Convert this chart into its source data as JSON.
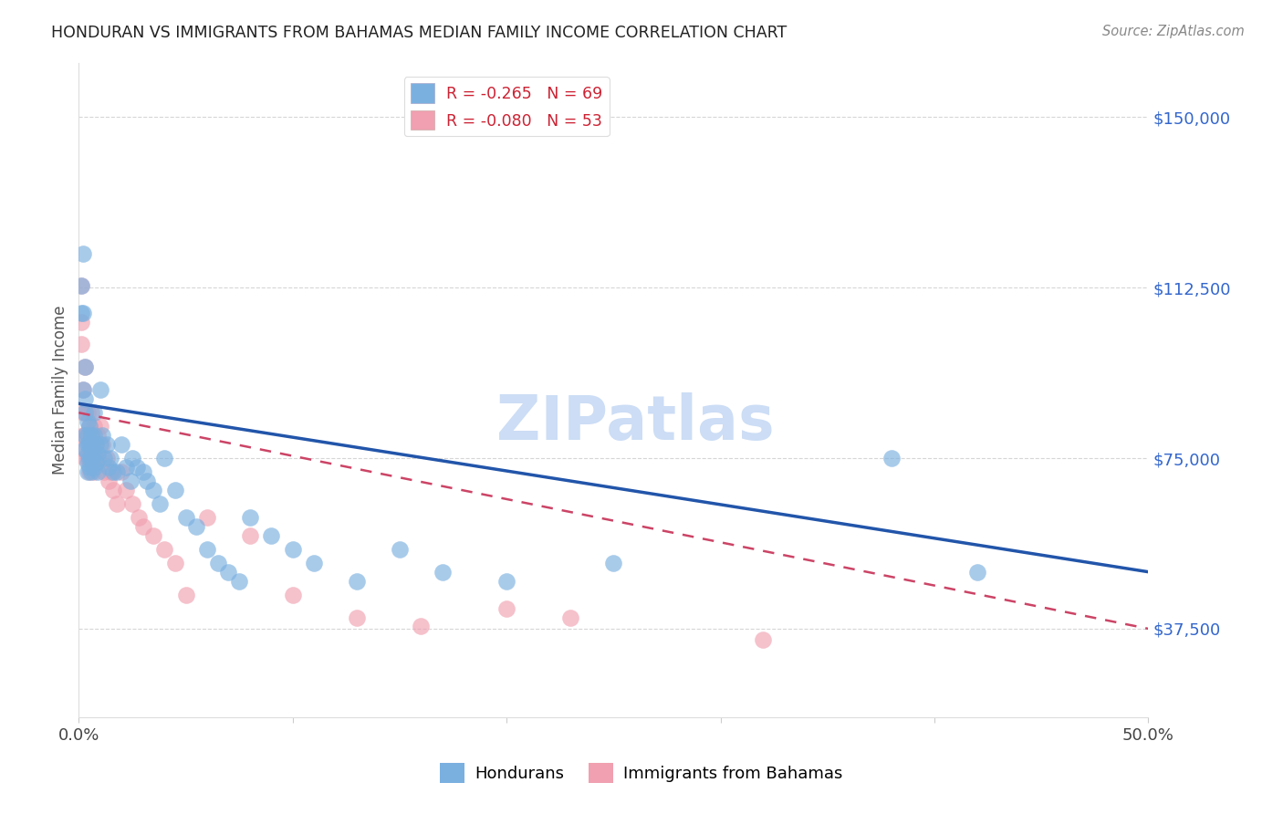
{
  "title": "HONDURAN VS IMMIGRANTS FROM BAHAMAS MEDIAN FAMILY INCOME CORRELATION CHART",
  "source": "Source: ZipAtlas.com",
  "ylabel": "Median Family Income",
  "yticks": [
    37500,
    75000,
    112500,
    150000
  ],
  "ytick_labels": [
    "$37,500",
    "$75,000",
    "$112,500",
    "$150,000"
  ],
  "xlim": [
    0.0,
    0.5
  ],
  "ylim": [
    18000,
    162000
  ],
  "legend1_label": "R = -0.265   N = 69",
  "legend2_label": "R = -0.080   N = 53",
  "color_blue": "#7ab0e0",
  "color_pink": "#f0a0b0",
  "color_blue_line": "#2255aa",
  "color_pink_line": "#cc4466",
  "watermark": "ZIPatlas",
  "watermark_color": "#ccddf5",
  "hondurans_x": [
    0.001,
    0.001,
    0.002,
    0.002,
    0.002,
    0.003,
    0.003,
    0.003,
    0.003,
    0.003,
    0.004,
    0.004,
    0.004,
    0.004,
    0.004,
    0.004,
    0.005,
    0.005,
    0.005,
    0.005,
    0.006,
    0.006,
    0.006,
    0.006,
    0.007,
    0.007,
    0.007,
    0.007,
    0.008,
    0.008,
    0.009,
    0.009,
    0.01,
    0.01,
    0.011,
    0.012,
    0.013,
    0.014,
    0.015,
    0.016,
    0.018,
    0.02,
    0.022,
    0.024,
    0.025,
    0.027,
    0.03,
    0.032,
    0.035,
    0.038,
    0.04,
    0.045,
    0.05,
    0.055,
    0.06,
    0.065,
    0.07,
    0.075,
    0.08,
    0.09,
    0.1,
    0.11,
    0.13,
    0.15,
    0.17,
    0.2,
    0.25,
    0.38,
    0.42
  ],
  "hondurans_y": [
    113000,
    107000,
    120000,
    107000,
    90000,
    95000,
    88000,
    85000,
    80000,
    77000,
    83000,
    80000,
    78000,
    76000,
    74000,
    72000,
    82000,
    78000,
    75000,
    73000,
    80000,
    78000,
    75000,
    72000,
    85000,
    80000,
    76000,
    73000,
    78000,
    74000,
    76000,
    72000,
    90000,
    78000,
    80000,
    75000,
    78000,
    73000,
    75000,
    72000,
    72000,
    78000,
    73000,
    70000,
    75000,
    73000,
    72000,
    70000,
    68000,
    65000,
    75000,
    68000,
    62000,
    60000,
    55000,
    52000,
    50000,
    48000,
    62000,
    58000,
    55000,
    52000,
    48000,
    55000,
    50000,
    48000,
    52000,
    75000,
    50000
  ],
  "bahamas_x": [
    0.001,
    0.001,
    0.001,
    0.002,
    0.002,
    0.002,
    0.002,
    0.003,
    0.003,
    0.003,
    0.003,
    0.004,
    0.004,
    0.004,
    0.005,
    0.005,
    0.005,
    0.005,
    0.006,
    0.006,
    0.006,
    0.007,
    0.007,
    0.007,
    0.008,
    0.008,
    0.009,
    0.009,
    0.01,
    0.011,
    0.012,
    0.013,
    0.014,
    0.015,
    0.016,
    0.018,
    0.02,
    0.022,
    0.025,
    0.028,
    0.03,
    0.035,
    0.04,
    0.045,
    0.05,
    0.06,
    0.08,
    0.1,
    0.13,
    0.16,
    0.2,
    0.23,
    0.32
  ],
  "bahamas_y": [
    113000,
    105000,
    100000,
    90000,
    85000,
    80000,
    77000,
    95000,
    85000,
    80000,
    75000,
    85000,
    80000,
    75000,
    82000,
    78000,
    75000,
    72000,
    85000,
    80000,
    75000,
    82000,
    78000,
    72000,
    78000,
    74000,
    80000,
    75000,
    82000,
    78000,
    72000,
    75000,
    70000,
    72000,
    68000,
    65000,
    72000,
    68000,
    65000,
    62000,
    60000,
    58000,
    55000,
    52000,
    45000,
    62000,
    58000,
    45000,
    40000,
    38000,
    42000,
    40000,
    35000
  ],
  "blue_line_y0": 87000,
  "blue_line_y1": 50000,
  "pink_line_y0": 85000,
  "pink_line_y1": 37500
}
